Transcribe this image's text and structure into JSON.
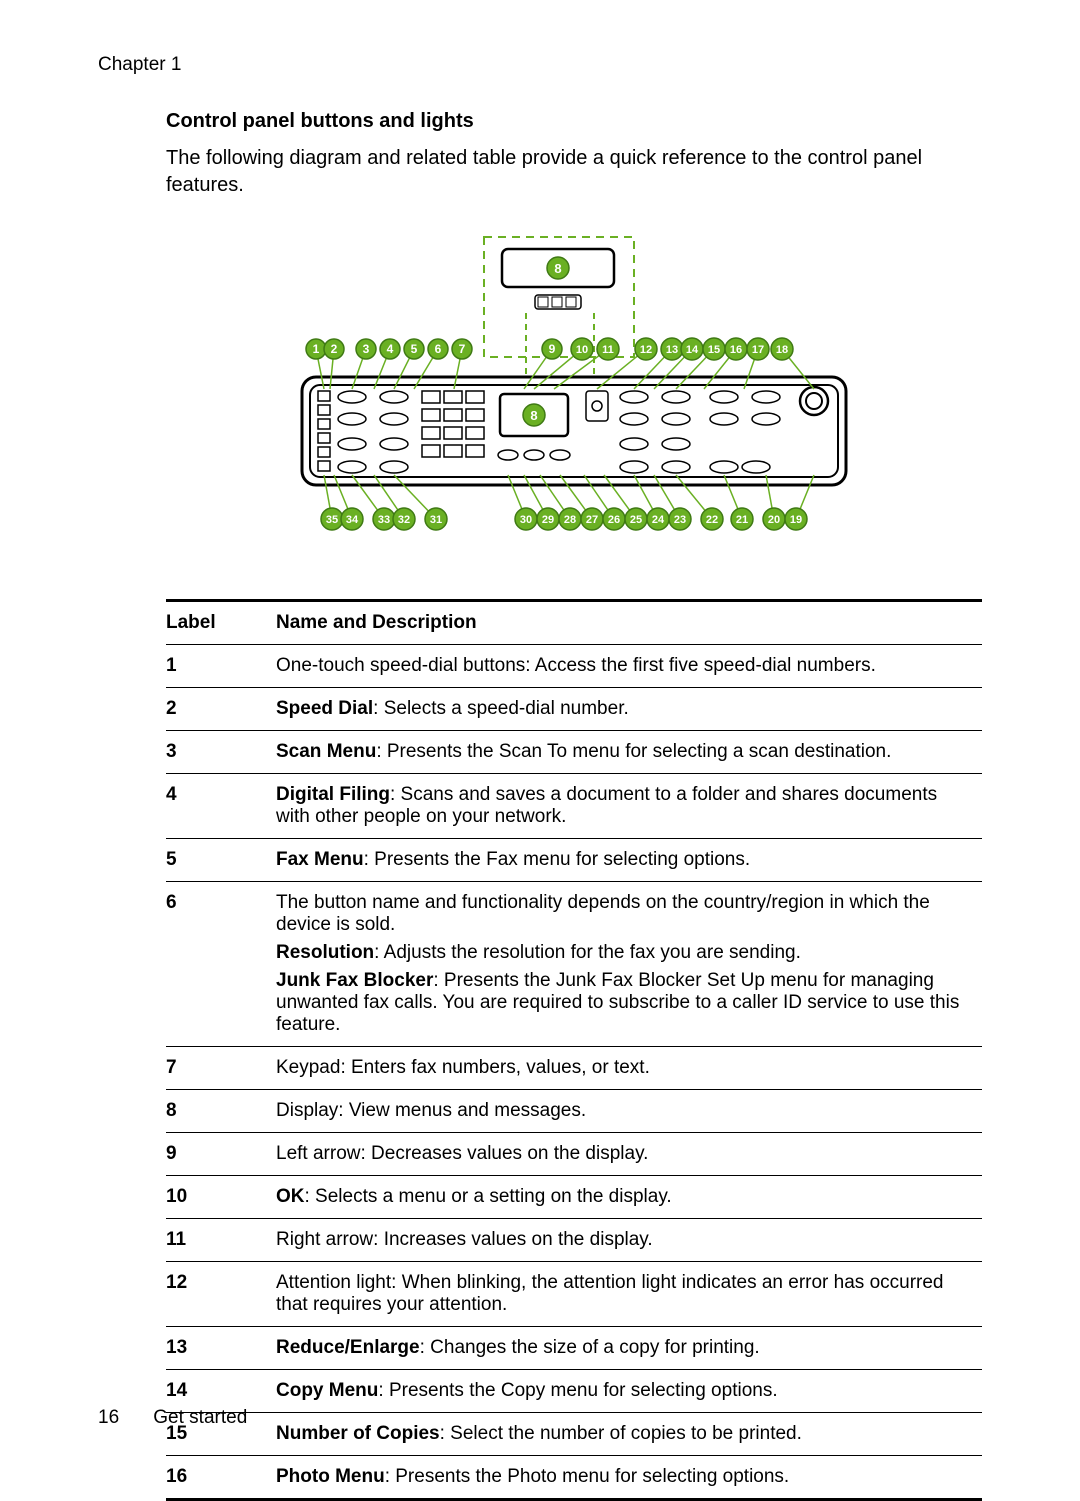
{
  "chapter": "Chapter 1",
  "heading": "Control panel buttons and lights",
  "intro": "The following diagram and related table provide a quick reference to the control panel features.",
  "diagram": {
    "marker_fill": "#6ab023",
    "marker_stroke": "#3f7a14",
    "marker_text": "#ffffff",
    "panel_stroke": "#000000",
    "panel_fill": "#ffffff",
    "dashed_stroke": "#6ab023",
    "top_row": [
      1,
      2,
      3,
      4,
      5,
      6,
      7,
      9,
      10,
      11,
      12,
      13,
      14,
      15,
      16,
      17,
      18
    ],
    "display_marker": 8,
    "bottom_row": [
      35,
      34,
      33,
      32,
      31,
      30,
      29,
      28,
      27,
      26,
      25,
      24,
      23,
      22,
      21,
      20,
      19
    ]
  },
  "table": {
    "headers": {
      "label": "Label",
      "desc": "Name and Description"
    },
    "rows": [
      {
        "label": "1",
        "desc": [
          {
            "plain": "One-touch speed-dial buttons: Access the first five speed-dial numbers."
          }
        ]
      },
      {
        "label": "2",
        "desc": [
          {
            "bold": "Speed Dial",
            "plain": ": Selects a speed-dial number."
          }
        ]
      },
      {
        "label": "3",
        "desc": [
          {
            "bold": "Scan Menu",
            "plain": ": Presents the Scan To menu for selecting a scan destination."
          }
        ]
      },
      {
        "label": "4",
        "desc": [
          {
            "bold": "Digital Filing",
            "plain": ": Scans and saves a document to a folder and shares documents with other people on your network."
          }
        ]
      },
      {
        "label": "5",
        "desc": [
          {
            "bold": "Fax Menu",
            "plain": ": Presents the Fax menu for selecting options."
          }
        ]
      },
      {
        "label": "6",
        "desc": [
          {
            "plain": "The button name and functionality depends on the country/region in which the device is sold."
          },
          {
            "bold": "Resolution",
            "plain": ": Adjusts the resolution for the fax you are sending."
          },
          {
            "bold": "Junk Fax Blocker",
            "plain": ": Presents the Junk Fax Blocker Set Up menu for managing unwanted fax calls. You are required to subscribe to a caller ID service to use this feature."
          }
        ]
      },
      {
        "label": "7",
        "desc": [
          {
            "plain": "Keypad: Enters fax numbers, values, or text."
          }
        ]
      },
      {
        "label": "8",
        "desc": [
          {
            "plain": "Display: View menus and messages."
          }
        ]
      },
      {
        "label": "9",
        "desc": [
          {
            "plain": "Left arrow: Decreases values on the display."
          }
        ]
      },
      {
        "label": "10",
        "desc": [
          {
            "bold": "OK",
            "plain": ": Selects a menu or a setting on the display."
          }
        ]
      },
      {
        "label": "11",
        "desc": [
          {
            "plain": "Right arrow: Increases values on the display."
          }
        ]
      },
      {
        "label": "12",
        "desc": [
          {
            "plain": "Attention light: When blinking, the attention light indicates an error has occurred that requires your attention."
          }
        ]
      },
      {
        "label": "13",
        "desc": [
          {
            "bold": "Reduce/Enlarge",
            "plain": ": Changes the size of a copy for printing."
          }
        ]
      },
      {
        "label": "14",
        "desc": [
          {
            "bold": "Copy Menu",
            "plain": ": Presents the Copy menu for selecting options."
          }
        ]
      },
      {
        "label": "15",
        "desc": [
          {
            "bold": "Number of Copies",
            "plain": ": Select the number of copies to be printed."
          }
        ]
      },
      {
        "label": "16",
        "desc": [
          {
            "bold": "Photo Menu",
            "plain": ": Presents the Photo menu for selecting options."
          }
        ]
      }
    ]
  },
  "footer": {
    "page": "16",
    "section": "Get started"
  }
}
